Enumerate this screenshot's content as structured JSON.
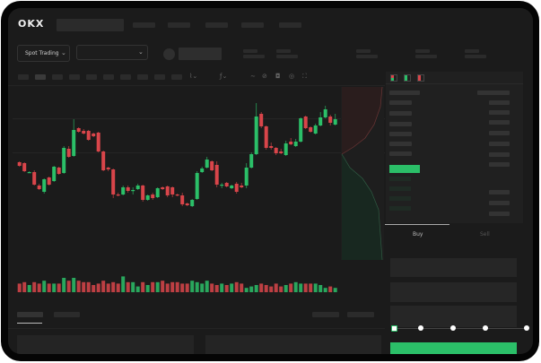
{
  "header": {
    "logo": "OKX"
  },
  "market_bar": {
    "mode_selector": "Spot Trading"
  },
  "trade_panel": {
    "tabs": [
      {
        "label": "Buy",
        "active": true
      },
      {
        "label": "Sell",
        "active": false
      }
    ],
    "slider_value": 0,
    "slider_marks": [
      0,
      25,
      50,
      75,
      100
    ]
  },
  "colors": {
    "up": "#2bbf68",
    "down": "#d9454a",
    "background": "#1b1b1b",
    "panel": "#202020"
  },
  "chart_data": {
    "type": "candlestick",
    "candles": [
      [
        119,
        120,
        114,
        115
      ],
      [
        118,
        119,
        108,
        109
      ],
      [
        107,
        109,
        107,
        108
      ],
      [
        108,
        110,
        93,
        94
      ],
      [
        93,
        95,
        88,
        89
      ],
      [
        86,
        101,
        84,
        100
      ],
      [
        102,
        103,
        93,
        94
      ],
      [
        98,
        115,
        97,
        114
      ],
      [
        113,
        114,
        105,
        106
      ],
      [
        107,
        137,
        106,
        135
      ],
      [
        134,
        137,
        124,
        125
      ],
      [
        126,
        167,
        125,
        155
      ],
      [
        157,
        158,
        152,
        153
      ],
      [
        154,
        156,
        150,
        151
      ],
      [
        154,
        155,
        143,
        144
      ],
      [
        151,
        152,
        147,
        148
      ],
      [
        152,
        153,
        130,
        131
      ],
      [
        131,
        132,
        109,
        110
      ],
      [
        113,
        114,
        109,
        111
      ],
      [
        111,
        112,
        79,
        83
      ],
      [
        83,
        85,
        81,
        82
      ],
      [
        83,
        93,
        82,
        91
      ],
      [
        91,
        93,
        85,
        87
      ],
      [
        87,
        91,
        83,
        88
      ],
      [
        89,
        95,
        88,
        93
      ],
      [
        93,
        94,
        75,
        77
      ],
      [
        77,
        83,
        76,
        82
      ],
      [
        83,
        85,
        77,
        79
      ],
      [
        80,
        91,
        79,
        90
      ],
      [
        91,
        92,
        88,
        89
      ],
      [
        92,
        93,
        80,
        82
      ],
      [
        91,
        92,
        80,
        83
      ],
      [
        83,
        84,
        81,
        82
      ],
      [
        82,
        85,
        70,
        72
      ],
      [
        73,
        74,
        70,
        71
      ],
      [
        70,
        78,
        69,
        77
      ],
      [
        78,
        109,
        77,
        107
      ],
      [
        108,
        114,
        107,
        112
      ],
      [
        113,
        125,
        112,
        122
      ],
      [
        120,
        121,
        109,
        110
      ],
      [
        116,
        120,
        91,
        94
      ],
      [
        93,
        96,
        90,
        94
      ],
      [
        96,
        97,
        91,
        92
      ],
      [
        90,
        94,
        89,
        93
      ],
      [
        95,
        97,
        84,
        86
      ],
      [
        93,
        96,
        90,
        91
      ],
      [
        93,
        118,
        90,
        113
      ],
      [
        113,
        130,
        112,
        128
      ],
      [
        128,
        185,
        127,
        170
      ],
      [
        173,
        175,
        157,
        159
      ],
      [
        159,
        160,
        133,
        135
      ],
      [
        137,
        141,
        133,
        135
      ],
      [
        135,
        136,
        127,
        129
      ],
      [
        131,
        134,
        128,
        129
      ],
      [
        127,
        143,
        126,
        140
      ],
      [
        142,
        146,
        138,
        139
      ],
      [
        137,
        145,
        136,
        142
      ],
      [
        142,
        169,
        141,
        168
      ],
      [
        170,
        171,
        156,
        157
      ],
      [
        158,
        159,
        152,
        153
      ],
      [
        151,
        162,
        150,
        160
      ],
      [
        160,
        175,
        159,
        169
      ],
      [
        169,
        182,
        168,
        178
      ],
      [
        170,
        172,
        160,
        163
      ],
      [
        161,
        173,
        160,
        167
      ]
    ],
    "volume": [
      6,
      7,
      5,
      7,
      6,
      8,
      6,
      6,
      6,
      10,
      8,
      10,
      8,
      7,
      7,
      5,
      6,
      8,
      6,
      7,
      6,
      11,
      7,
      7,
      4,
      7,
      5,
      7,
      7,
      8,
      6,
      7,
      7,
      6,
      6,
      8,
      7,
      6,
      8,
      6,
      5,
      6,
      5,
      6,
      7,
      6,
      3,
      4,
      5,
      6,
      5,
      4,
      6,
      4,
      5,
      6,
      7,
      6,
      6,
      6,
      6,
      5,
      3,
      4,
      3
    ],
    "grid": true,
    "depth": {
      "bids_side": "green",
      "asks_side": "red"
    }
  }
}
